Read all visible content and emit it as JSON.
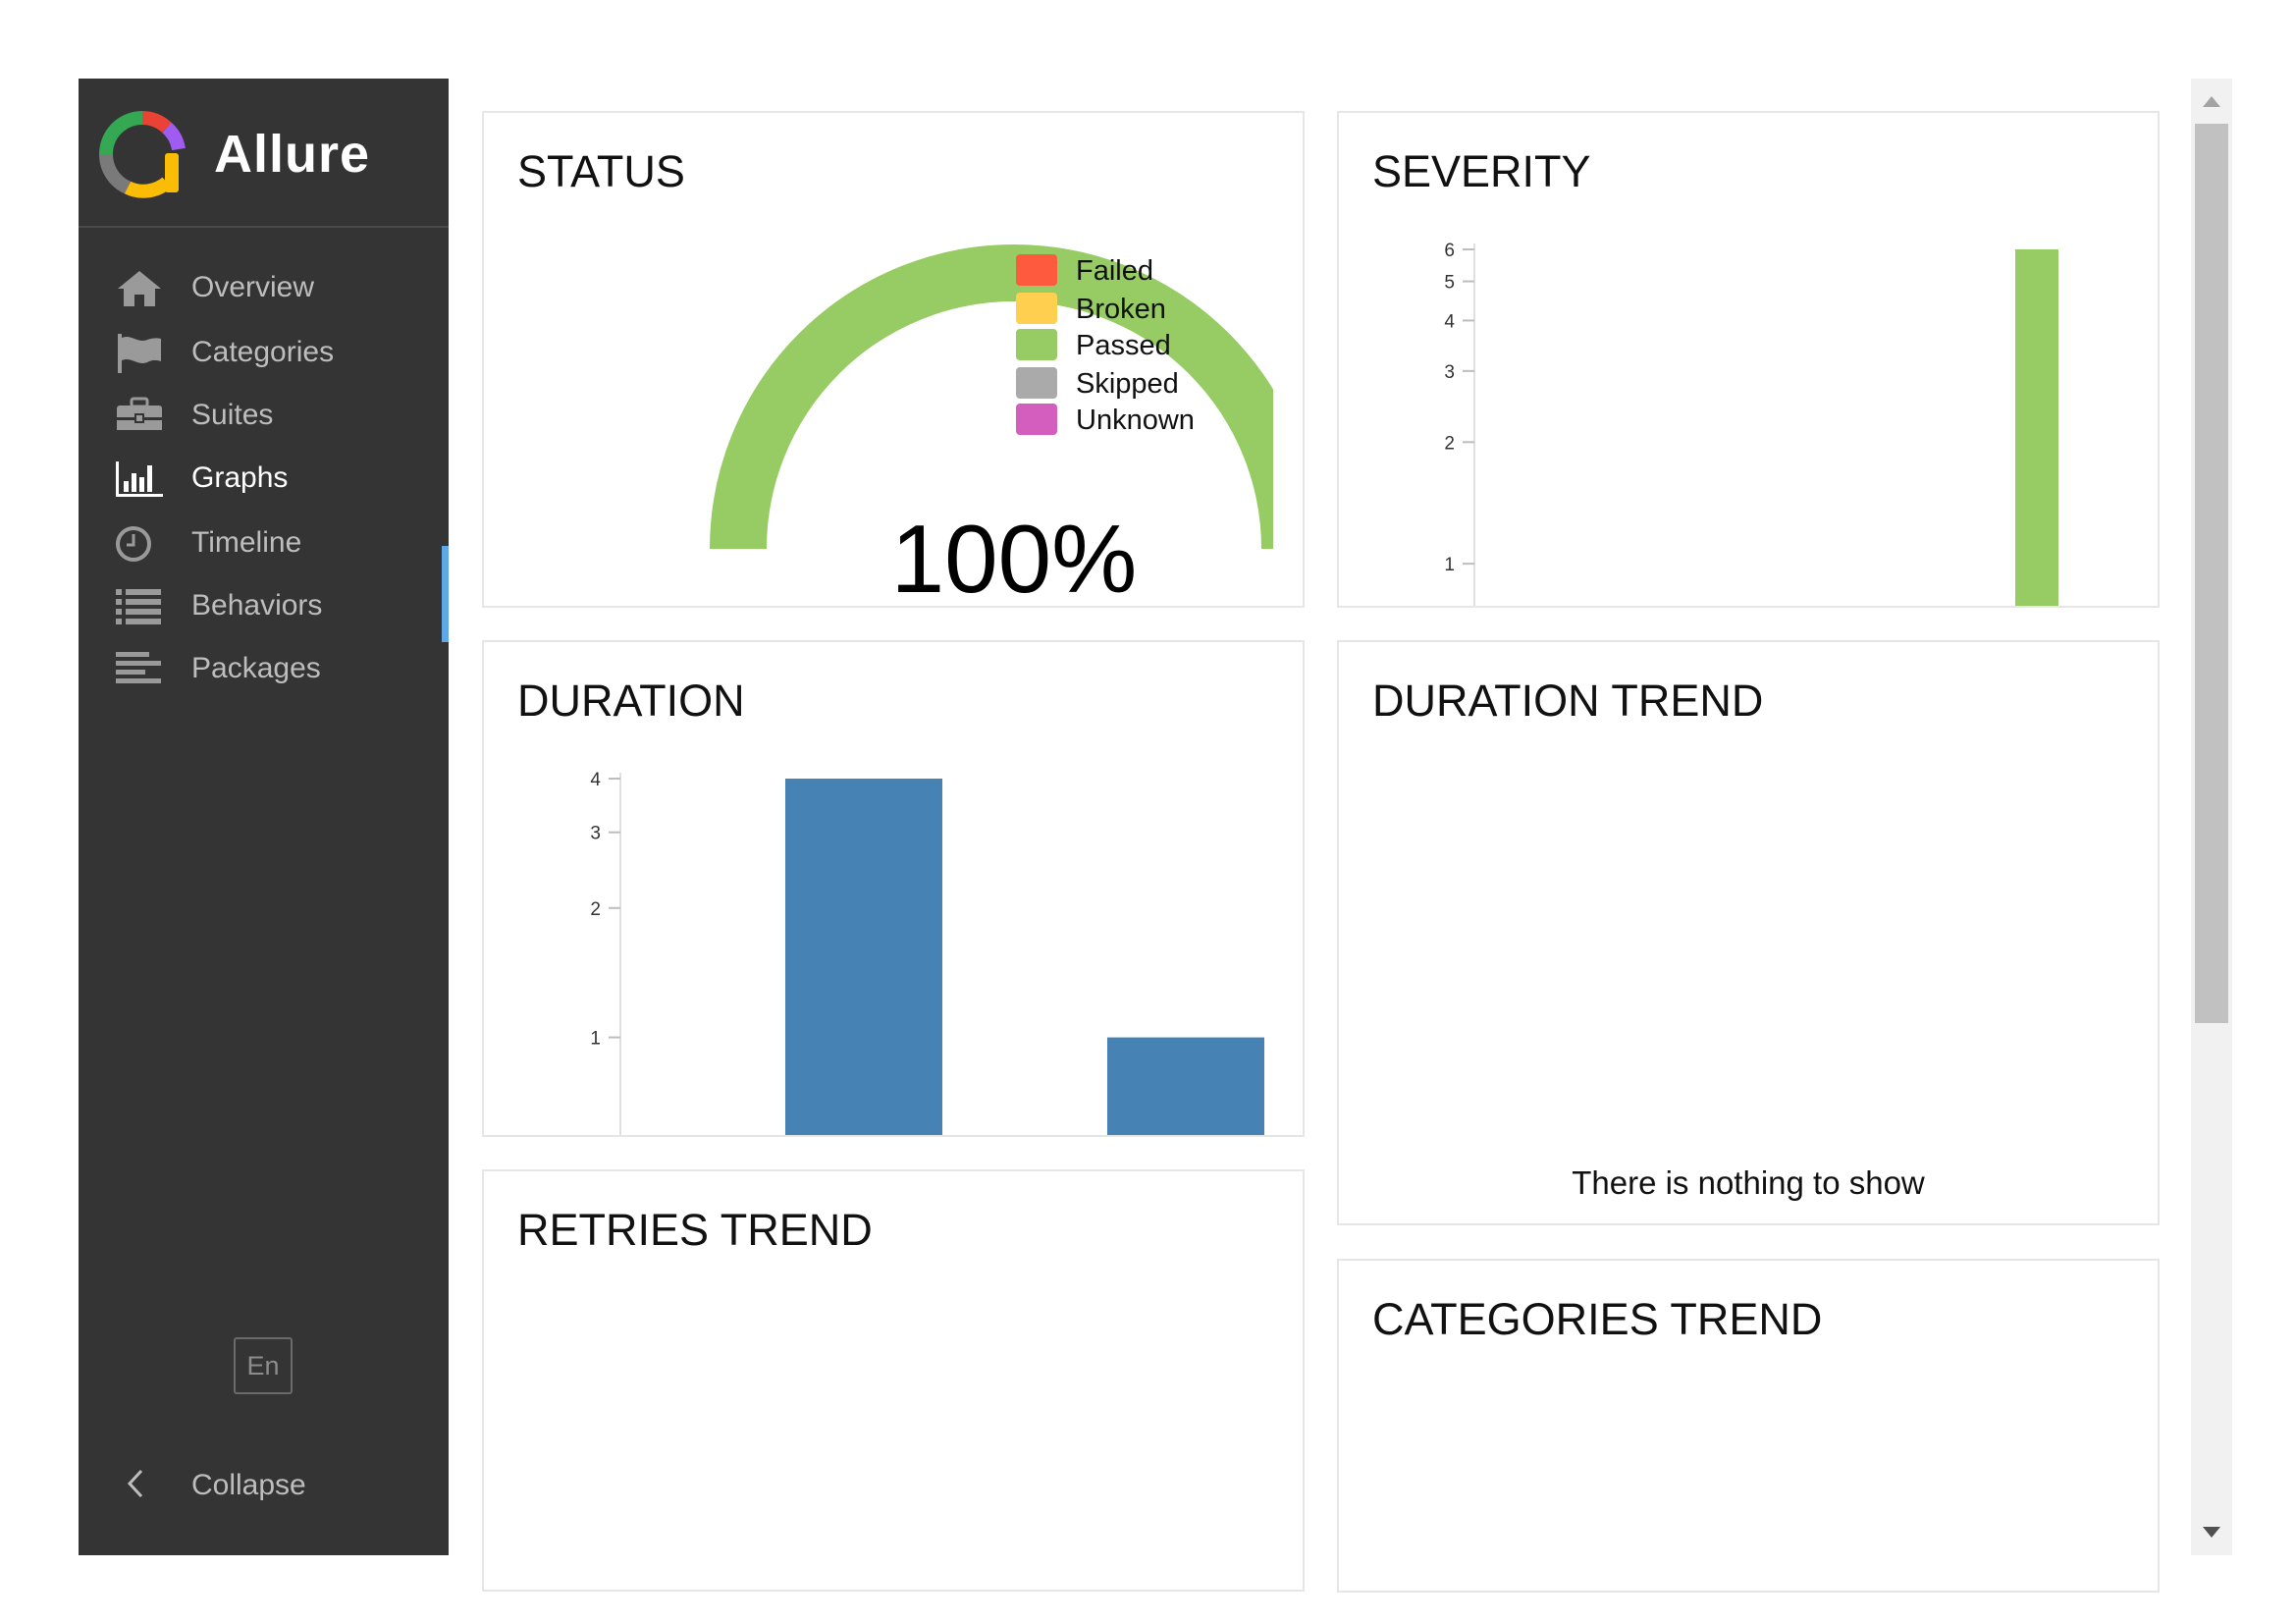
{
  "app": {
    "name": "Allure"
  },
  "sidebar": {
    "items": [
      {
        "label": "Overview",
        "icon": "home-icon"
      },
      {
        "label": "Categories",
        "icon": "flag-icon"
      },
      {
        "label": "Suites",
        "icon": "briefcase-icon"
      },
      {
        "label": "Graphs",
        "icon": "bar-chart-icon",
        "active": true
      },
      {
        "label": "Timeline",
        "icon": "clock-icon"
      },
      {
        "label": "Behaviors",
        "icon": "list-icon"
      },
      {
        "label": "Packages",
        "icon": "align-left-icon"
      }
    ],
    "language": "En",
    "collapse_label": "Collapse"
  },
  "widgets": {
    "status": {
      "title": "STATUS",
      "percent_label": "100%",
      "legend": [
        {
          "label": "Failed",
          "color": "#fd5a3e"
        },
        {
          "label": "Broken",
          "color": "#ffd050"
        },
        {
          "label": "Passed",
          "color": "#97cc64"
        },
        {
          "label": "Skipped",
          "color": "#aaaaaa"
        },
        {
          "label": "Unknown",
          "color": "#d35ebe"
        }
      ]
    },
    "severity": {
      "title": "SEVERITY"
    },
    "duration": {
      "title": "DURATION"
    },
    "duration_trend": {
      "title": "DURATION TREND",
      "empty_message": "There is nothing to show"
    },
    "retries_trend": {
      "title": "RETRIES TREND"
    },
    "categories_trend": {
      "title": "CATEGORIES TREND"
    }
  },
  "chart_data": [
    {
      "type": "pie",
      "title": "STATUS",
      "categories": [
        "Failed",
        "Broken",
        "Passed",
        "Skipped",
        "Unknown"
      ],
      "values": [
        0,
        0,
        100,
        0,
        0
      ],
      "center_label": "100%"
    },
    {
      "type": "bar",
      "title": "SEVERITY",
      "yscale": "log",
      "yticks": [
        1,
        2,
        3,
        4,
        5,
        6
      ],
      "ylim": [
        0.8,
        6
      ],
      "values": [
        6
      ],
      "color": "#97cc64"
    },
    {
      "type": "bar",
      "title": "DURATION",
      "yscale": "log",
      "yticks": [
        1,
        2,
        3,
        4
      ],
      "ylim": [
        0.8,
        4
      ],
      "values": [
        4,
        1
      ],
      "color": "#4682b4"
    }
  ]
}
